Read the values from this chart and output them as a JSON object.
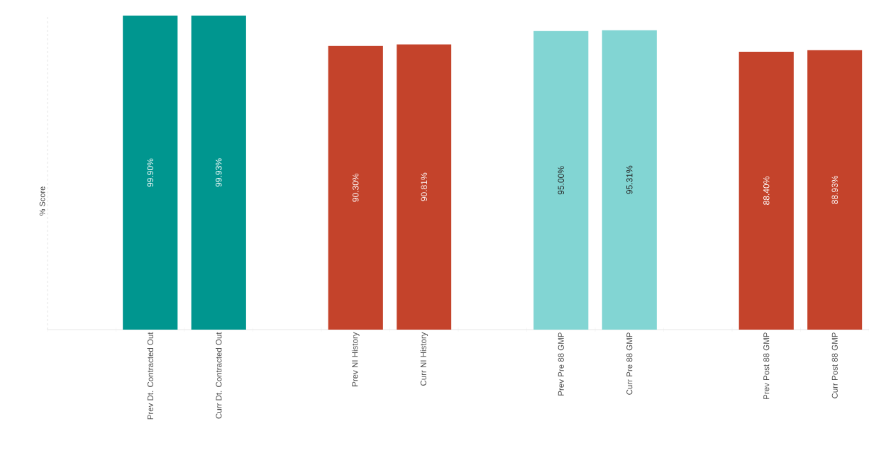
{
  "chart_data": {
    "type": "bar",
    "ylabel": "% Score",
    "categories": [
      null,
      "Prev Dt. Contracted Out",
      "Curr Dt. Contracted Out",
      null,
      "Prev NI History",
      "Curr NI History",
      null,
      "Prev Pre 88 GMP",
      "Curr Pre 88 GMP",
      null,
      "Prev Post 88 GMP",
      "Curr Post 88 GMP"
    ],
    "values": [
      null,
      99.9,
      99.93,
      null,
      90.3,
      90.81,
      null,
      95.0,
      95.31,
      null,
      88.4,
      88.93
    ],
    "value_labels": [
      null,
      "99.90%",
      "99.93%",
      null,
      "90.30%",
      "90.81%",
      null,
      "95.00%",
      "95.31%",
      null,
      "88.40%",
      "88.93%"
    ],
    "colors": [
      null,
      "#00968f",
      "#00968f",
      null,
      "#c4432b",
      "#c4432b",
      null,
      "#82d5d3",
      "#82d5d3",
      null,
      "#c4432b",
      "#c4432b"
    ]
  }
}
